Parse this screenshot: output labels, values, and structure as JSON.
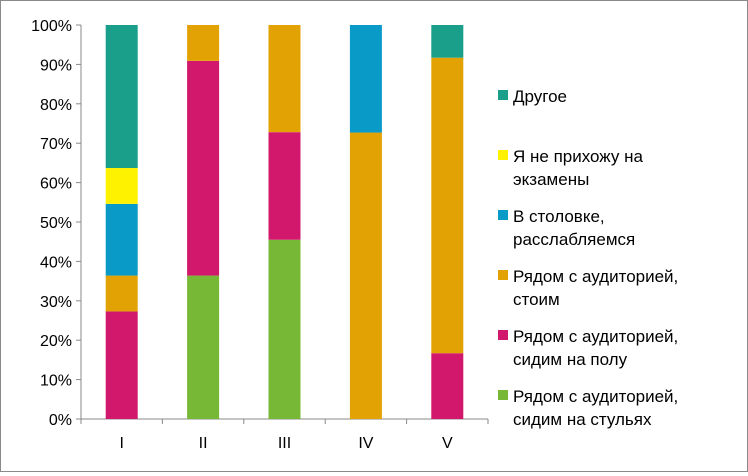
{
  "chart_data": {
    "type": "bar",
    "stacked": true,
    "percent_stacked": true,
    "categories": [
      "I",
      "II",
      "III",
      "IV",
      "V"
    ],
    "ylim": [
      0,
      100
    ],
    "yticks": [
      "0%",
      "10%",
      "20%",
      "30%",
      "40%",
      "50%",
      "60%",
      "70%",
      "80%",
      "90%",
      "100%"
    ],
    "grid": false,
    "legend_position": "right",
    "title": "",
    "xlabel": "",
    "ylabel": "",
    "series": [
      {
        "name": "Рядом с аудиторией, сидим на стульях",
        "color": "#77b837",
        "values": [
          0,
          36.4,
          45.5,
          0,
          0
        ]
      },
      {
        "name": "Рядом с аудиторией, сидим на полу",
        "color": "#d2186c",
        "values": [
          27.3,
          54.5,
          27.3,
          0,
          16.7
        ]
      },
      {
        "name": "Рядом с аудиторией, стоим",
        "color": "#e3a204",
        "values": [
          9.1,
          9.1,
          27.2,
          72.7,
          75.0
        ]
      },
      {
        "name": "В столовке, расслабляемся",
        "color": "#0a9ac8",
        "values": [
          18.2,
          0,
          0,
          27.3,
          0
        ]
      },
      {
        "name": "Я не прихожу на экзамены",
        "color": "#fff200",
        "values": [
          9.1,
          0,
          0,
          0,
          0
        ]
      },
      {
        "name": "Другое",
        "color": "#1aa08a",
        "values": [
          36.3,
          0,
          0,
          0,
          8.3
        ]
      }
    ],
    "legend": [
      {
        "lines": [
          "Другое"
        ],
        "color": "#1aa08a"
      },
      {
        "lines": [
          "Я не прихожу на",
          "экзамены"
        ],
        "color": "#fff200"
      },
      {
        "lines": [
          "В столовке,",
          "расслабляемся"
        ],
        "color": "#0a9ac8"
      },
      {
        "lines": [
          "Рядом с аудиторией,",
          "стоим"
        ],
        "color": "#e3a204"
      },
      {
        "lines": [
          "Рядом с аудиторией,",
          "сидим на полу"
        ],
        "color": "#d2186c"
      },
      {
        "lines": [
          "Рядом с аудиторией,",
          "сидим на стульях"
        ],
        "color": "#77b837"
      }
    ]
  }
}
